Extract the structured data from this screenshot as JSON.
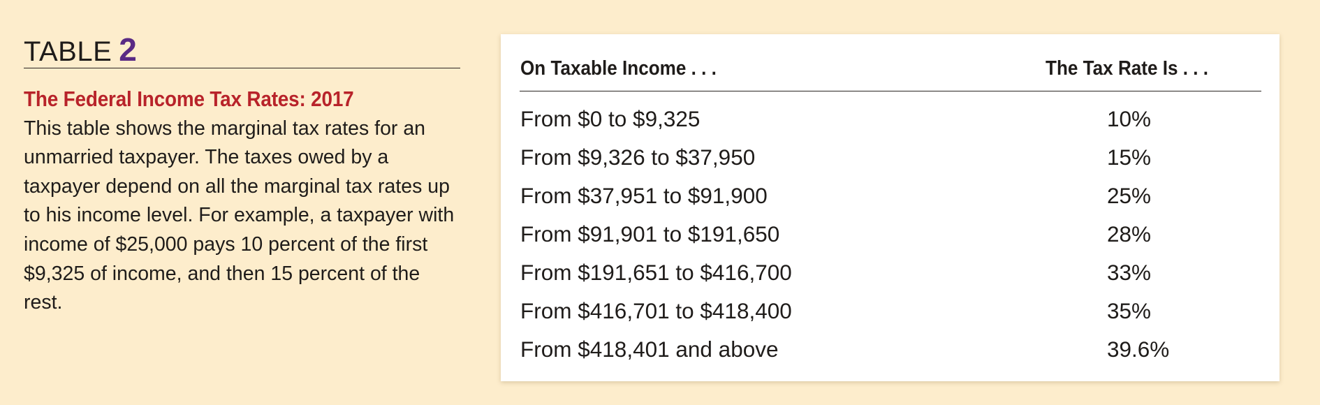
{
  "table_label": {
    "word": "TABLE",
    "number": "2"
  },
  "caption": {
    "title": "The Federal Income Tax Rates: 2017",
    "body": "This table shows the marginal tax rates for an unmarried taxpayer. The taxes owed by a taxpayer depend on all the marginal tax rates up to his income level. For example, a taxpayer with income of $25,000 pays 10 percent of the first $9,325 of income, and then 15 percent of the rest."
  },
  "table": {
    "headers": {
      "income": "On Taxable Income . . .",
      "rate": "The Tax Rate Is . . ."
    },
    "rows": [
      {
        "income": "From $0 to $9,325",
        "rate": "10%"
      },
      {
        "income": "From $9,326 to $37,950",
        "rate": "15%"
      },
      {
        "income": "From $37,951 to $91,900",
        "rate": "25%"
      },
      {
        "income": "From $91,901 to $191,650",
        "rate": "28%"
      },
      {
        "income": "From $191,651 to $416,700",
        "rate": "33%"
      },
      {
        "income": "From $416,701 to $418,400",
        "rate": "35%"
      },
      {
        "income": "From $418,401 and above",
        "rate": "39.6%"
      }
    ]
  },
  "colors": {
    "background": "#fdedcc",
    "title_red": "#b8232a",
    "number_purple": "#5a2a84",
    "card": "#ffffff"
  }
}
